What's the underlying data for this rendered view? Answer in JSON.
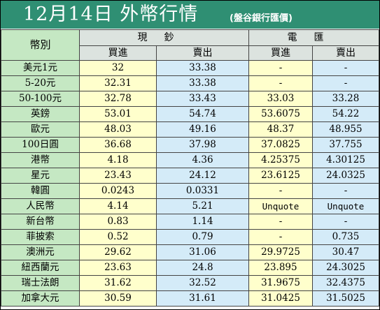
{
  "header": {
    "title": "12月14日 外幣行情",
    "subtitle": "(盤谷銀行匯價)"
  },
  "table": {
    "corner_label": "幣別",
    "groups": [
      "現鈔",
      "電匯"
    ],
    "sub_headers": [
      "買進",
      "賣出",
      "買進",
      "賣出"
    ],
    "rows": [
      {
        "currency": "美元1元",
        "cash_buy": "32",
        "cash_sell": "33.38",
        "tt_buy": "-",
        "tt_sell": "-"
      },
      {
        "currency": "5-20元",
        "cash_buy": "32.31",
        "cash_sell": "33.38",
        "tt_buy": "-",
        "tt_sell": "-"
      },
      {
        "currency": "50-100元",
        "cash_buy": "32.78",
        "cash_sell": "33.43",
        "tt_buy": "33.03",
        "tt_sell": "33.28"
      },
      {
        "currency": "英鎊",
        "cash_buy": "53.01",
        "cash_sell": "54.74",
        "tt_buy": "53.6075",
        "tt_sell": "54.22"
      },
      {
        "currency": "歐元",
        "cash_buy": "48.03",
        "cash_sell": "49.16",
        "tt_buy": "48.37",
        "tt_sell": "48.955"
      },
      {
        "currency": "100日圓",
        "cash_buy": "36.68",
        "cash_sell": "37.98",
        "tt_buy": "37.0825",
        "tt_sell": "37.755"
      },
      {
        "currency": "港幣",
        "cash_buy": "4.18",
        "cash_sell": "4.36",
        "tt_buy": "4.25375",
        "tt_sell": "4.30125"
      },
      {
        "currency": "星元",
        "cash_buy": "23.43",
        "cash_sell": "24.12",
        "tt_buy": "23.6125",
        "tt_sell": "24.0325"
      },
      {
        "currency": "韓圓",
        "cash_buy": "0.0243",
        "cash_sell": "0.0331",
        "tt_buy": "-",
        "tt_sell": "-"
      },
      {
        "currency": "人民幣",
        "cash_buy": "4.14",
        "cash_sell": "5.21",
        "tt_buy": "Unquote",
        "tt_sell": "Unquote"
      },
      {
        "currency": "新台幣",
        "cash_buy": "0.83",
        "cash_sell": "1.14",
        "tt_buy": "-",
        "tt_sell": "-"
      },
      {
        "currency": "菲披索",
        "cash_buy": "0.52",
        "cash_sell": "0.79",
        "tt_buy": "-",
        "tt_sell": "0.735"
      },
      {
        "currency": "澳洲元",
        "cash_buy": "29.62",
        "cash_sell": "31.06",
        "tt_buy": "29.9725",
        "tt_sell": "30.47"
      },
      {
        "currency": "紐西蘭元",
        "cash_buy": "23.63",
        "cash_sell": "24.8",
        "tt_buy": "23.895",
        "tt_sell": "24.3025"
      },
      {
        "currency": "瑞士法朗",
        "cash_buy": "31.62",
        "cash_sell": "32.52",
        "tt_buy": "31.9675",
        "tt_sell": "32.4375"
      },
      {
        "currency": "加拿大元",
        "cash_buy": "30.59",
        "cash_sell": "31.61",
        "tt_buy": "31.0425",
        "tt_sell": "31.5025"
      }
    ]
  },
  "colors": {
    "header_bg": "#2f8f73",
    "currency_col_bg": "#c5e8c3",
    "buy_col_bg": "#ffffcc",
    "sell_col_bg": "#d4ebf8",
    "group_header_bg": "#dce3df"
  }
}
